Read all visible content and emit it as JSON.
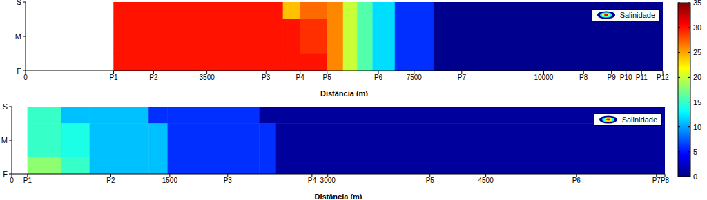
{
  "chart_data": [
    {
      "type": "heatmap",
      "xlabel": "Distância (m)",
      "legend": "upper right",
      "xlim": [
        0,
        12300
      ],
      "xticks": [
        0,
        {
          "value": 1700,
          "label": "P1"
        },
        {
          "value": 2470,
          "label": "P2"
        },
        3500,
        {
          "value": 4640,
          "label": "P3"
        },
        {
          "value": 5300,
          "label": "P4"
        },
        {
          "value": 5820,
          "label": "P5"
        },
        {
          "value": 6810,
          "label": "P6"
        },
        7500,
        {
          "value": 8420,
          "label": "P7"
        },
        10000,
        {
          "value": 10770,
          "label": "P8"
        },
        {
          "value": 11310,
          "label": "P9"
        },
        {
          "value": 11590,
          "label": "P10"
        },
        {
          "value": 11890,
          "label": "P11"
        },
        {
          "value": 12300,
          "label": "P12"
        }
      ],
      "ylim": [
        0,
        2
      ],
      "yticks": [
        {
          "value": 0,
          "label": "F"
        },
        {
          "value": 1,
          "label": "M"
        },
        {
          "value": 2,
          "label": "S"
        }
      ],
      "series": [
        {
          "name": "Salinidade",
          "x_edges": [
            1700,
            4970,
            5300,
            5820,
            6130,
            6400,
            6700,
            7130,
            7880,
            12300
          ],
          "y": [
            2,
            1,
            0
          ],
          "z": [
            [
              30,
              24,
              27,
              26,
              20,
              16,
              12,
              6,
              0.5
            ],
            [
              30,
              30,
              29,
              26,
              20,
              16,
              12,
              6,
              0.5
            ],
            [
              30,
              30,
              30,
              26,
              20,
              16,
              12,
              6,
              0.5
            ]
          ]
        }
      ],
      "colorbar": {
        "lim": [
          0,
          35
        ],
        "ticks": [
          0,
          5,
          10,
          15,
          20,
          25,
          30,
          35
        ]
      }
    },
    {
      "type": "heatmap",
      "xlabel": "Distância (m)",
      "legend": "upper right",
      "xlim": [
        0,
        6200
      ],
      "xticks": [
        0,
        {
          "value": 150,
          "label": "P1"
        },
        {
          "value": 940,
          "label": "P2"
        },
        1500,
        {
          "value": 2050,
          "label": "P3"
        },
        {
          "value": 2850,
          "label": "P4"
        },
        3000,
        {
          "value": 3970,
          "label": "P5"
        },
        4500,
        {
          "value": 5360,
          "label": "P6"
        },
        {
          "value": 6120,
          "label": "P7"
        },
        {
          "value": 6200,
          "label": "P8"
        }
      ],
      "ylim": [
        0,
        2
      ],
      "yticks": [
        {
          "value": 0,
          "label": "F"
        },
        {
          "value": 1,
          "label": "M"
        },
        {
          "value": 2,
          "label": "S"
        }
      ],
      "series": [
        {
          "name": "Salinidade",
          "x_edges": [
            150,
            470,
            740,
            1300,
            1480,
            2350,
            2510,
            6200
          ],
          "y": [
            2,
            1,
            0
          ],
          "z": [
            [
              15,
              11,
              11,
              6,
              6,
              1,
              1
            ],
            [
              15,
              14,
              11,
              11,
              6,
              6,
              1
            ],
            [
              18,
              15,
              11,
              11,
              6,
              6,
              1
            ]
          ]
        }
      ]
    }
  ]
}
